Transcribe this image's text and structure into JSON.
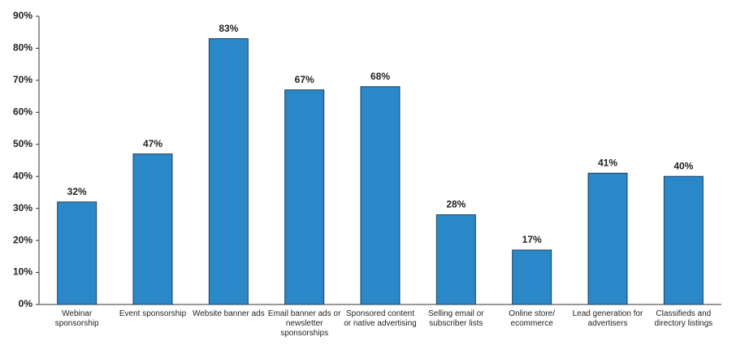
{
  "chart_data": {
    "type": "bar",
    "categories": [
      "Webinar sponsorship",
      "Event sponsorship",
      "Website banner ads",
      "Email banner ads or newsletter sponsorships",
      "Sponsored content or native advertising",
      "Selling email or subscriber lists",
      "Online store/ ecommerce",
      "Lead generation for advertisers",
      "Classifieds and directory listings"
    ],
    "values": [
      32,
      47,
      83,
      67,
      68,
      28,
      17,
      41,
      40
    ],
    "value_labels": [
      "32%",
      "47%",
      "83%",
      "67%",
      "68%",
      "28%",
      "17%",
      "41%",
      "40%"
    ],
    "color": "#2a87c8",
    "ylim": [
      0,
      90
    ],
    "yticks": [
      {
        "value": 0,
        "label": "0%"
      },
      {
        "value": 10,
        "label": "10%"
      },
      {
        "value": 20,
        "label": "20%"
      },
      {
        "value": 30,
        "label": "30%"
      },
      {
        "value": 40,
        "label": "40%"
      },
      {
        "value": 50,
        "label": "50%"
      },
      {
        "value": 60,
        "label": "60%"
      },
      {
        "value": 70,
        "label": "70%"
      },
      {
        "value": 80,
        "label": "80%"
      },
      {
        "value": 90,
        "label": "90%"
      }
    ],
    "grid": false
  }
}
